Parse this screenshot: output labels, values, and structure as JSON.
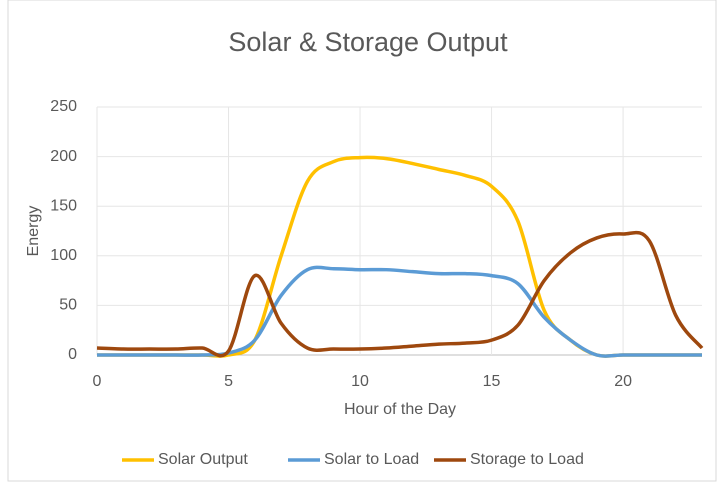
{
  "chart_data": {
    "type": "line",
    "title": "Solar & Storage Output",
    "x_label": "Hour of the Day",
    "y_label": "Energy",
    "x": [
      0,
      1,
      2,
      3,
      4,
      5,
      6,
      7,
      8,
      9,
      10,
      11,
      12,
      13,
      14,
      15,
      16,
      17,
      18,
      19,
      20,
      21,
      22,
      23
    ],
    "series": [
      {
        "name": "Solar Output",
        "color": "#FFC000",
        "values": [
          0,
          0,
          0,
          0,
          0,
          0,
          15,
          100,
          175,
          195,
          199,
          198,
          193,
          187,
          181,
          170,
          135,
          45,
          15,
          0,
          0,
          0,
          0,
          0
        ]
      },
      {
        "name": "Solar to Load",
        "color": "#5B9BD5",
        "values": [
          0,
          0,
          0,
          0,
          0,
          2,
          15,
          60,
          86,
          87,
          86,
          86,
          84,
          82,
          82,
          80,
          72,
          38,
          15,
          0,
          0,
          0,
          0,
          0
        ]
      },
      {
        "name": "Storage to Load",
        "color": "#9E480E",
        "values": [
          7,
          6,
          6,
          6,
          7,
          4,
          80,
          32,
          7,
          6,
          6,
          7,
          9,
          11,
          12,
          15,
          30,
          75,
          103,
          118,
          122,
          115,
          40,
          7
        ]
      }
    ],
    "xlim": [
      0,
      23
    ],
    "xticks": [
      0,
      5,
      10,
      15,
      20
    ],
    "ylim": [
      0,
      250
    ],
    "yticks": [
      0,
      50,
      100,
      150,
      200,
      250
    ],
    "grid": true,
    "legend": "bottom"
  }
}
